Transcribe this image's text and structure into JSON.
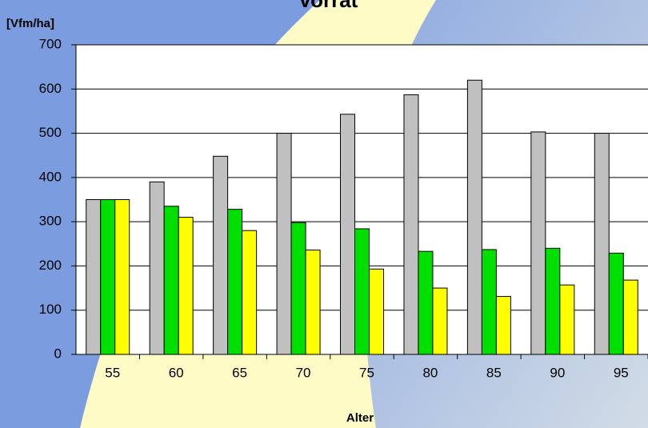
{
  "chart_data": {
    "type": "bar",
    "title": "Vorrat",
    "y_label": "[Vfm/ha]",
    "x_label": "Alter",
    "categories": [
      "55",
      "60",
      "65",
      "70",
      "75",
      "80",
      "85",
      "90",
      "95"
    ],
    "series": [
      {
        "color": "#c0c0c0",
        "values": [
          350,
          390,
          448,
          500,
          543,
          587,
          620,
          503,
          500
        ]
      },
      {
        "color": "#00e000",
        "values": [
          350,
          335,
          328,
          298,
          284,
          233,
          237,
          240,
          229
        ]
      },
      {
        "color": "#ffff00",
        "values": [
          350,
          310,
          280,
          236,
          193,
          150,
          131,
          157,
          168
        ]
      }
    ],
    "ylim": [
      0,
      700
    ],
    "yticks": [
      0,
      100,
      200,
      300,
      400,
      500,
      600,
      700
    ],
    "grid": true
  }
}
